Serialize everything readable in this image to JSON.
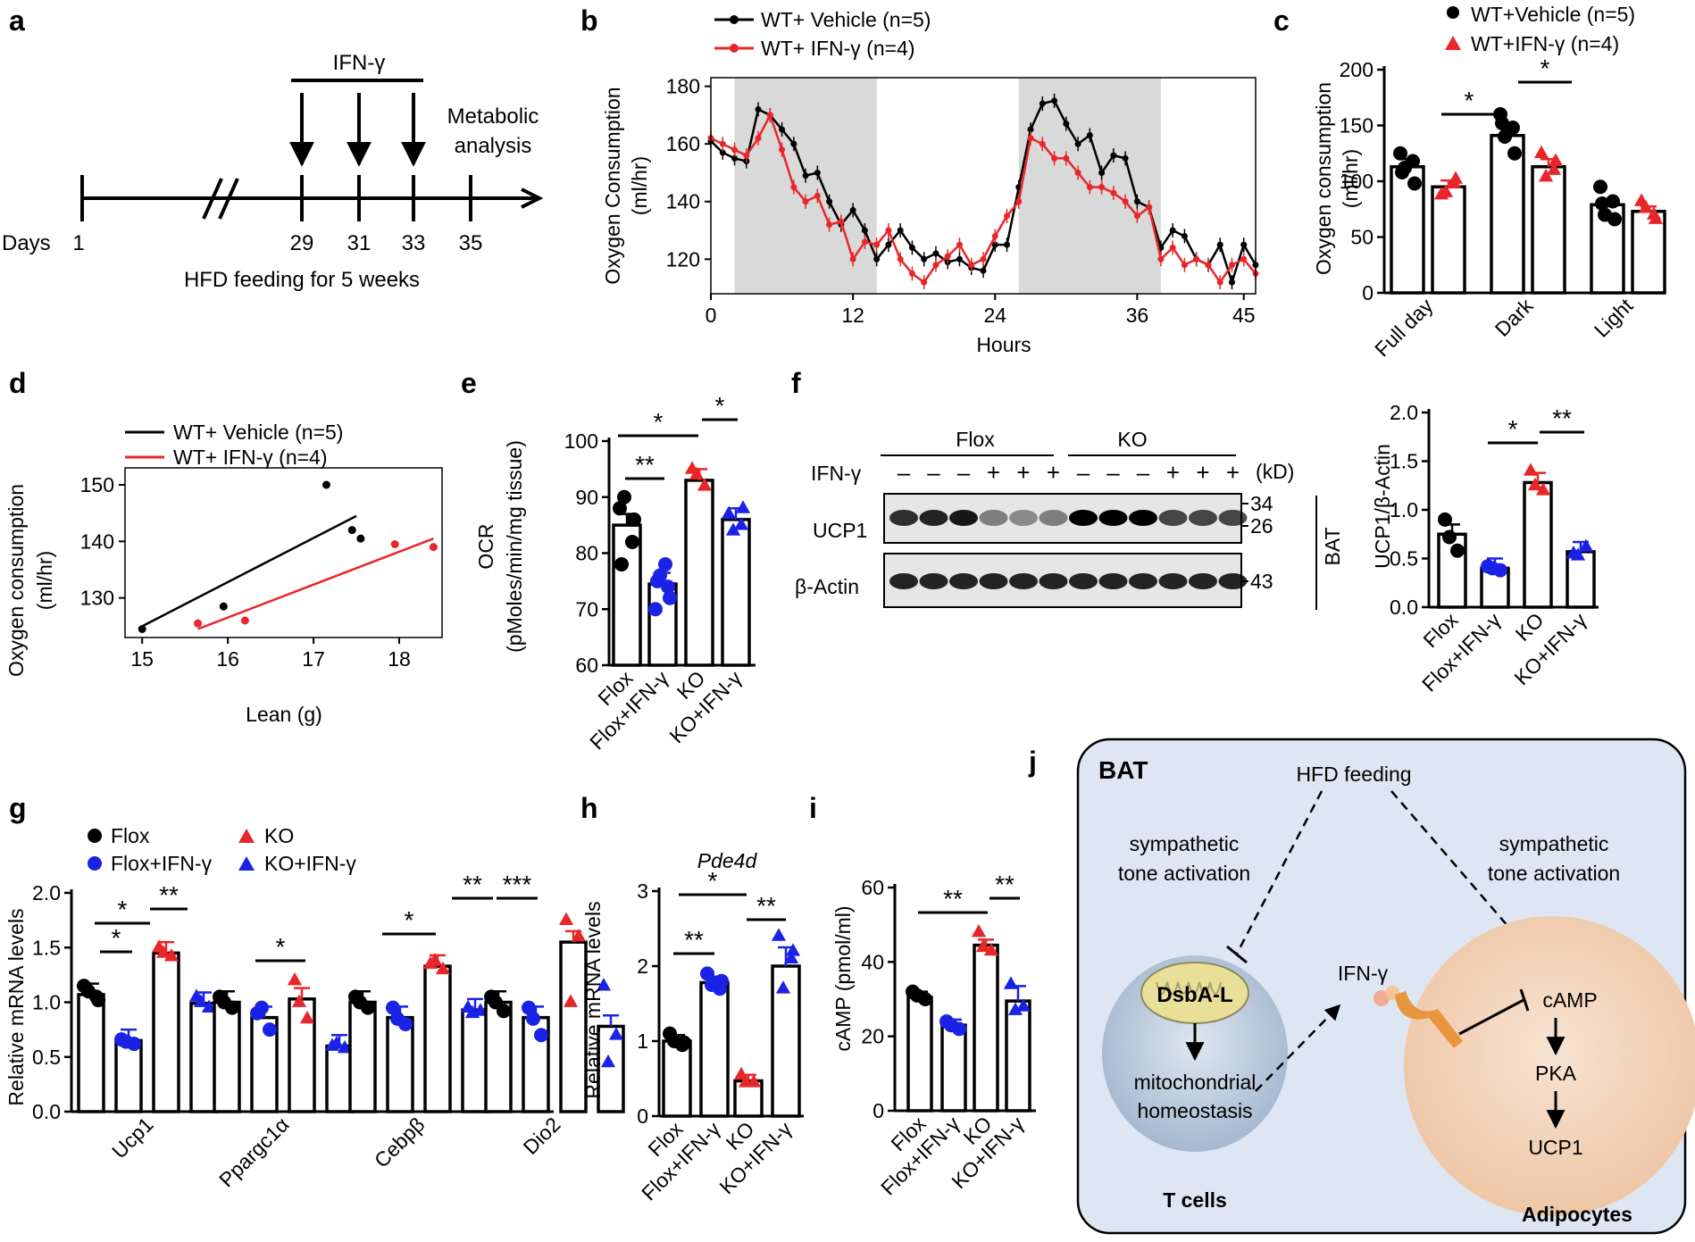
{
  "colors": {
    "black": "#000000",
    "red": "#e8262a",
    "blue": "#1a22e6",
    "gray": "#d9d9d9",
    "bat_bg": "#dfe6f3",
    "tcell": "#b9c9dc",
    "adipo": "#f2d1b5",
    "mito": "#e9df99",
    "receptor": "#e8963d"
  },
  "panel_labels": [
    "a",
    "b",
    "c",
    "d",
    "e",
    "f",
    "g",
    "h",
    "i",
    "j"
  ],
  "a": {
    "ifn": "IFN-γ",
    "metab1": "Metabolic",
    "metab2": "analysis",
    "days_label": "Days",
    "ticks": [
      "1",
      "29",
      "31",
      "33",
      "35"
    ],
    "hfd": "HFD feeding for 5 weeks"
  },
  "b": {
    "legend": [
      "WT+ Vehicle (n=5)",
      "WT+ IFN-γ (n=4)"
    ],
    "ylabel1": "Oxygen Consumption",
    "ylabel2": "(ml/hr)",
    "xlabel": "Hours",
    "yticks": [
      "120",
      "140",
      "160",
      "180"
    ],
    "xticks": [
      "0",
      "12",
      "24",
      "36",
      "45"
    ]
  },
  "c": {
    "legend": [
      "WT+Vehicle (n=5)",
      "WT+IFN-γ (n=4)"
    ],
    "ylabel1": "Oxygen consumption",
    "ylabel2": "(ml/hr)",
    "yticks": [
      "0",
      "50",
      "100",
      "150",
      "200"
    ],
    "cats": [
      "Full day",
      "Dark",
      "Light"
    ],
    "sig": [
      "*",
      "*"
    ]
  },
  "d": {
    "legend": [
      "WT+ Vehicle (n=5)",
      "WT+ IFN-γ (n=4)"
    ],
    "ylabel1": "Oxygen consumption",
    "ylabel2": "(ml/hr)",
    "xlabel": "Lean (g)",
    "yticks": [
      "130",
      "140",
      "150"
    ],
    "xticks": [
      "15",
      "16",
      "17",
      "18"
    ]
  },
  "e": {
    "ylabel1": "OCR",
    "ylabel2": "(pMoles/min/mg tissue)",
    "yticks": [
      "60",
      "70",
      "80",
      "90",
      "100"
    ],
    "cats": [
      "Flox",
      "Flox+IFN-γ",
      "KO",
      "KO+IFN-γ"
    ],
    "sig": [
      "*",
      "**",
      "*"
    ]
  },
  "f": {
    "flox": "Flox",
    "ko": "KO",
    "ifn": "IFN-γ",
    "kd": "(kD)",
    "minus": "–",
    "plus": "+",
    "ucp1": "UCP1",
    "actin": "β-Actin",
    "mw": [
      "34",
      "26",
      "43"
    ],
    "bat": "BAT",
    "ylabel": "UCP1/β-Actin",
    "yticks": [
      "0.0",
      "0.5",
      "1.0",
      "1.5",
      "2.0"
    ],
    "cats": [
      "Flox",
      "Flox+IFN-γ",
      "KO",
      "KO+IFN-γ"
    ],
    "sig": [
      "*",
      "**"
    ]
  },
  "g": {
    "legend": [
      "Flox",
      "Flox+IFN-γ",
      "KO",
      "KO+IFN-γ"
    ],
    "ylabel": "Relative mRNA levels",
    "yticks": [
      "0.0",
      "0.5",
      "1.0",
      "1.5",
      "2.0"
    ],
    "genes": [
      "Ucp1",
      "Ppargc1α",
      "Cebpβ",
      "Dio2"
    ],
    "sig": [
      "*",
      "*",
      "**",
      "*",
      "*",
      "**",
      "***"
    ]
  },
  "h": {
    "title": "Pde4d",
    "ylabel": "Relative mRNA levels",
    "yticks": [
      "0",
      "1",
      "2",
      "3"
    ],
    "cats": [
      "Flox",
      "Flox+IFN-γ",
      "KO",
      "KO+IFN-γ"
    ],
    "sig": [
      "**",
      "*",
      "**"
    ]
  },
  "i": {
    "ylabel": "cAMP (pmol/ml)",
    "yticks": [
      "0",
      "20",
      "40",
      "60"
    ],
    "cats": [
      "Flox",
      "Flox+IFN-γ",
      "KO",
      "KO+IFN-γ"
    ],
    "sig": [
      "**",
      "**"
    ]
  },
  "j": {
    "bat": "BAT",
    "hfd": "HFD feeding",
    "sym1a": "sympathetic",
    "sym1b": "tone activation",
    "sym2a": "sympathetic",
    "sym2b": "tone activation",
    "dsba": "DsbA-L",
    "mito1": "mitochondrial",
    "mito2": "homeostasis",
    "ifn": "IFN-γ",
    "camp": "cAMP",
    "pka": "PKA",
    "ucp1": "UCP1",
    "tcells": "T  cells",
    "adipo": "Adipocytes"
  },
  "chart_data": [
    {
      "panel": "b",
      "type": "line",
      "title": "",
      "xlabel": "Hours",
      "ylabel": "Oxygen Consumption (ml/hr)",
      "xlim": [
        0,
        46
      ],
      "ylim": [
        108,
        183
      ],
      "dark_periods": [
        [
          2,
          14
        ],
        [
          26,
          38
        ]
      ],
      "x": [
        0,
        1,
        2,
        3,
        4,
        5,
        6,
        7,
        8,
        9,
        10,
        11,
        12,
        13,
        14,
        15,
        16,
        17,
        18,
        19,
        20,
        21,
        22,
        23,
        24,
        25,
        26,
        27,
        28,
        29,
        30,
        31,
        32,
        33,
        34,
        35,
        36,
        37,
        38,
        39,
        40,
        41,
        42,
        43,
        44,
        45,
        46
      ],
      "series": [
        {
          "name": "WT+ Vehicle (n=5)",
          "values": [
            161,
            157,
            155,
            154,
            172,
            170,
            165,
            160,
            149,
            150,
            140,
            132,
            137,
            130,
            120,
            125,
            130,
            124,
            120,
            122,
            119,
            120,
            117,
            116,
            125,
            125,
            145,
            165,
            174,
            175,
            167,
            160,
            163,
            150,
            156,
            155,
            140,
            138,
            124,
            130,
            128,
            120,
            118,
            125,
            112,
            125,
            118
          ]
        },
        {
          "name": "WT+ IFN-γ (n=4)",
          "values": [
            162,
            160,
            158,
            156,
            162,
            170,
            158,
            145,
            140,
            142,
            132,
            133,
            120,
            126,
            125,
            130,
            120,
            115,
            112,
            118,
            121,
            125,
            118,
            120,
            128,
            135,
            140,
            162,
            160,
            155,
            155,
            150,
            145,
            145,
            143,
            140,
            135,
            138,
            120,
            124,
            118,
            120,
            118,
            112,
            118,
            120,
            115
          ]
        }
      ]
    },
    {
      "panel": "c",
      "type": "bar",
      "ylabel": "Oxygen consumption (ml/hr)",
      "ylim": [
        0,
        200
      ],
      "categories": [
        "Full day",
        "Dark",
        "Light"
      ],
      "series": [
        {
          "name": "WT+Vehicle (n=5)",
          "values": [
            113,
            141,
            79
          ]
        },
        {
          "name": "WT+IFN-γ (n=4)",
          "values": [
            95,
            113,
            73
          ]
        }
      ]
    },
    {
      "panel": "d",
      "type": "scatter",
      "xlabel": "Lean (g)",
      "ylabel": "Oxygen consumption (ml/hr)",
      "xlim": [
        14.8,
        18.5
      ],
      "ylim": [
        123,
        153
      ],
      "series": [
        {
          "name": "WT+ Vehicle (n=5)",
          "x": [
            15.0,
            15.95,
            17.15,
            17.45,
            17.55
          ],
          "y": [
            124.5,
            128.5,
            150,
            142,
            140.5
          ],
          "fit": [
            [
              15.0,
              125
            ],
            [
              17.5,
              144.5
            ]
          ]
        },
        {
          "name": "WT+ IFN-γ (n=4)",
          "x": [
            15.65,
            16.2,
            17.95,
            18.4
          ],
          "y": [
            125.5,
            126,
            139.5,
            139
          ],
          "fit": [
            [
              15.65,
              124.5
            ],
            [
              18.4,
              140.5
            ]
          ]
        }
      ]
    },
    {
      "panel": "e",
      "type": "bar",
      "ylabel": "OCR (pMoles/min/mg tissue)",
      "ylim": [
        60,
        100
      ],
      "categories": [
        "Flox",
        "Flox+IFN-γ",
        "KO",
        "KO+IFN-γ"
      ],
      "values": [
        85,
        74.5,
        93,
        86
      ]
    },
    {
      "panel": "f",
      "type": "bar",
      "ylabel": "UCP1/β-Actin",
      "ylim": [
        0,
        2
      ],
      "categories": [
        "Flox",
        "Flox+IFN-γ",
        "KO",
        "KO+IFN-γ"
      ],
      "values": [
        0.75,
        0.4,
        1.28,
        0.57
      ]
    },
    {
      "panel": "g",
      "type": "bar",
      "ylabel": "Relative mRNA levels",
      "ylim": [
        0,
        2
      ],
      "categories": [
        "Ucp1",
        "Ppargc1α",
        "Cebpβ",
        "Dio2"
      ],
      "series": [
        {
          "name": "Flox",
          "values": [
            1.07,
            1.0,
            1.0,
            1.0
          ]
        },
        {
          "name": "Flox+IFN-γ",
          "values": [
            0.65,
            0.86,
            0.86,
            0.86
          ]
        },
        {
          "name": "KO",
          "values": [
            1.45,
            1.03,
            1.33,
            1.55
          ]
        },
        {
          "name": "KO+IFN-γ",
          "values": [
            0.99,
            0.6,
            0.93,
            0.78
          ]
        }
      ]
    },
    {
      "panel": "h",
      "type": "bar",
      "title": "Pde4d",
      "ylabel": "Relative mRNA levels",
      "ylim": [
        0,
        3
      ],
      "categories": [
        "Flox",
        "Flox+IFN-γ",
        "KO",
        "KO+IFN-γ"
      ],
      "values": [
        1.0,
        1.78,
        0.47,
        2.0
      ]
    },
    {
      "panel": "i",
      "type": "bar",
      "ylabel": "cAMP (pmol/ml)",
      "ylim": [
        0,
        60
      ],
      "categories": [
        "Flox",
        "Flox+IFN-γ",
        "KO",
        "KO+IFN-γ"
      ],
      "values": [
        30.5,
        23,
        44.5,
        29.5
      ]
    }
  ]
}
